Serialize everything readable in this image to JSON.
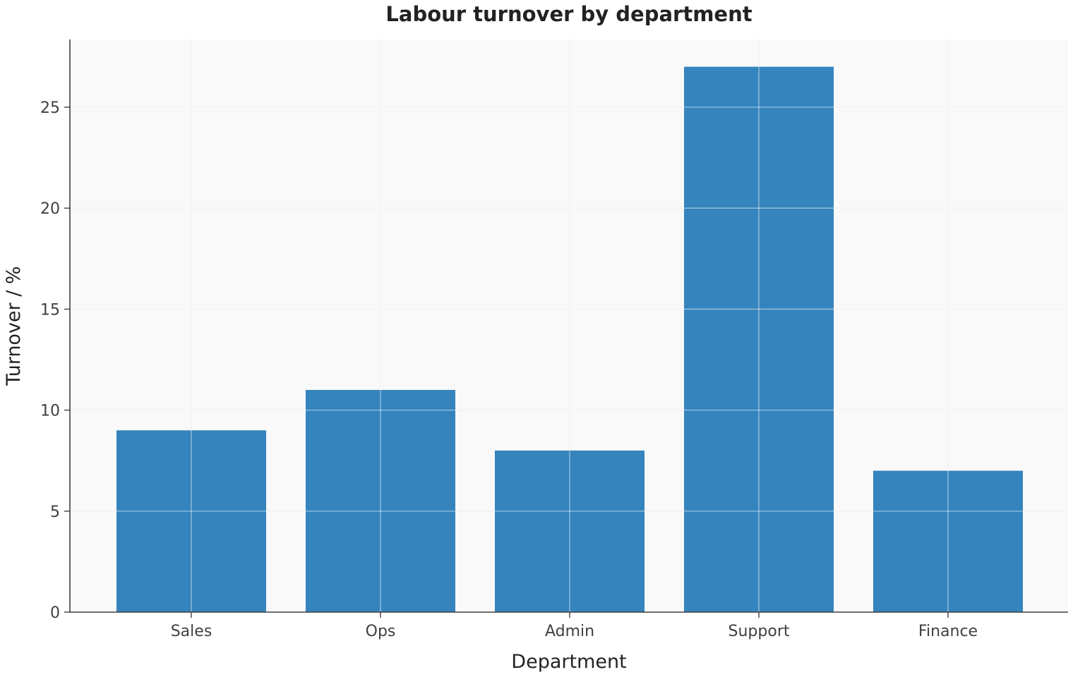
{
  "chart_data": {
    "type": "bar",
    "title": "Labour turnover by department",
    "xlabel": "Department",
    "ylabel": "Turnover / %",
    "categories": [
      "Sales",
      "Ops",
      "Admin",
      "Support",
      "Finance"
    ],
    "values": [
      9,
      11,
      8,
      27,
      7
    ],
    "ylim": [
      0,
      28.35
    ],
    "yticks": [
      0,
      5,
      10,
      15,
      20,
      25
    ],
    "grid": true,
    "bar_color": "#3584bd",
    "plot_background": "#f9f9f9",
    "grid_color": "#e5e5e5",
    "axis_color": "#404040"
  }
}
